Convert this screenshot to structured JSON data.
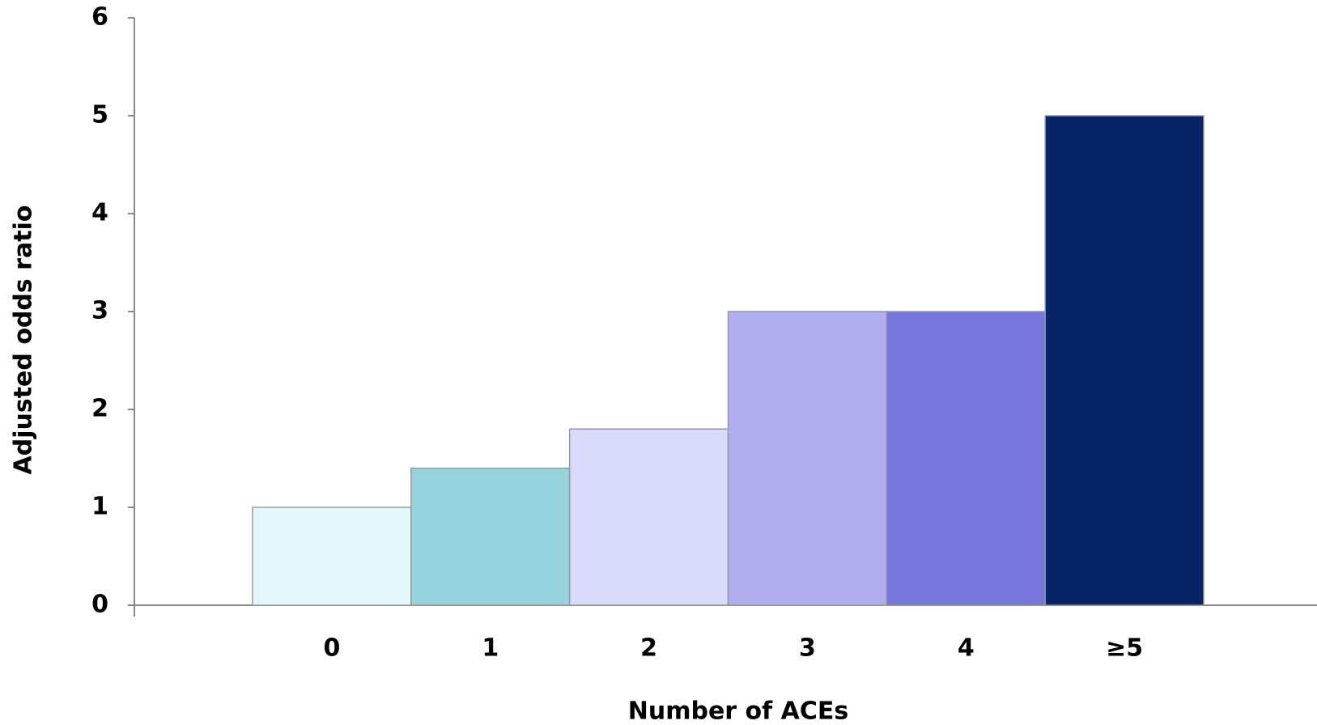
{
  "chart_data": {
    "type": "bar",
    "x_label": "Number of ACEs",
    "y_label": "Adjusted odds ratio",
    "categories": [
      "0",
      "1",
      "2",
      "3",
      "4",
      "≥5"
    ],
    "values": [
      1,
      1.4,
      1.8,
      3,
      3,
      5
    ],
    "colors": [
      "#e4f8fc",
      "#97d3dc",
      "#dadafa",
      "#b0aeee",
      "#7575db",
      "#072566"
    ],
    "ylim": [
      0,
      6
    ],
    "yticks": [
      0,
      1,
      2,
      3,
      4,
      5,
      6
    ],
    "grid": false
  }
}
